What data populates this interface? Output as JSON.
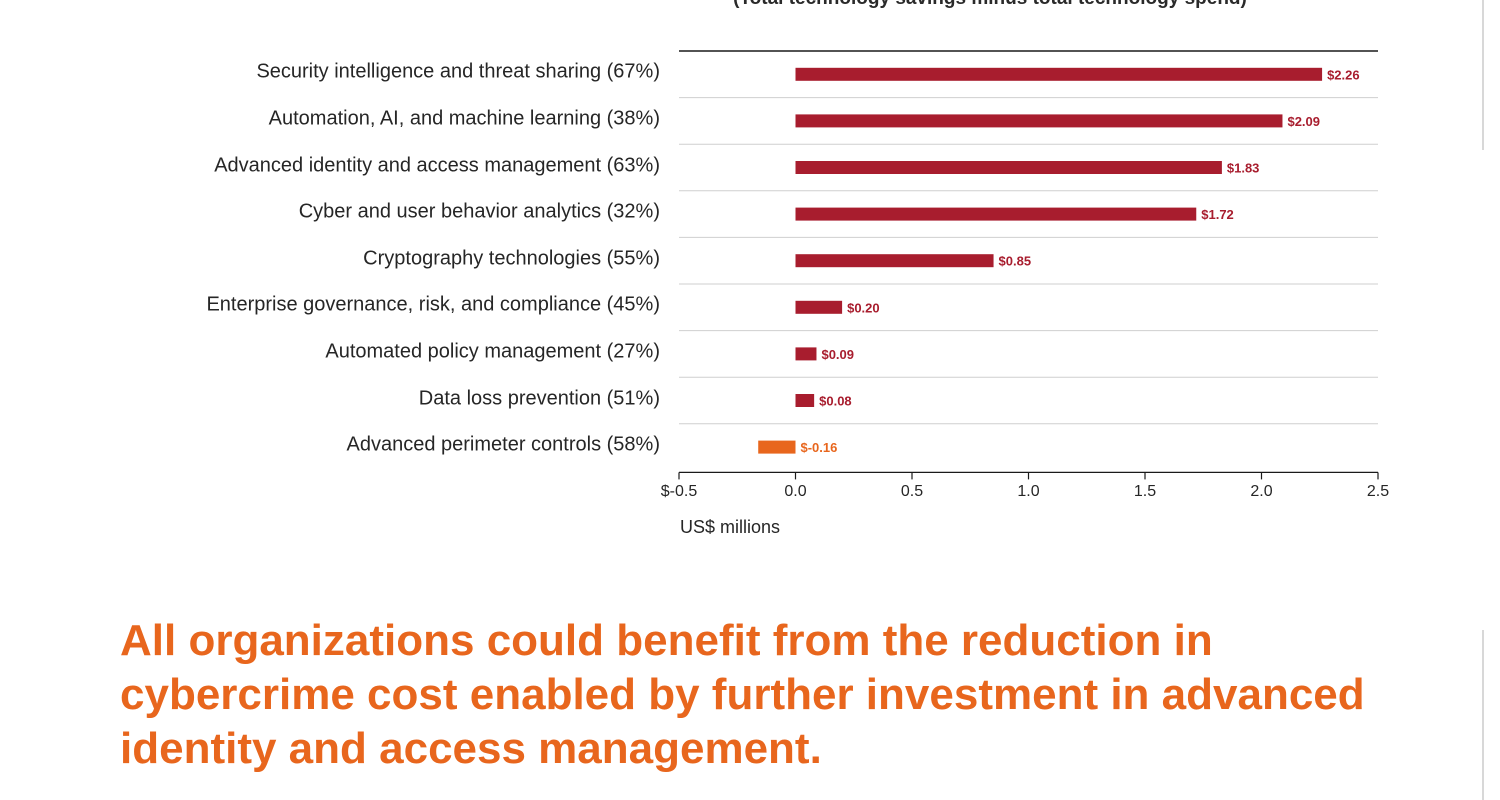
{
  "chart_data": {
    "type": "bar",
    "orientation": "horizontal",
    "subtitle": "(Total technology savings minus total technology spend)",
    "categories": [
      "Security intelligence and threat sharing (67%)",
      "Automation, AI, and machine learning (38%)",
      "Advanced identity and access management (63%)",
      "Cyber and user behavior analytics (32%)",
      "Cryptography technologies (55%)",
      "Enterprise governance, risk, and compliance (45%)",
      "Automated policy management (27%)",
      "Data loss prevention (51%)",
      "Advanced perimeter controls (58%)"
    ],
    "values": [
      2.26,
      2.09,
      1.83,
      1.72,
      0.85,
      0.2,
      0.09,
      0.08,
      -0.16
    ],
    "value_labels": [
      "$2.26",
      "$2.09",
      "$1.83",
      "$1.72",
      "$0.85",
      "$0.20",
      "$0.09",
      "$0.08",
      "$-0.16"
    ],
    "xlim": [
      -0.5,
      2.5
    ],
    "xticks": [
      -0.5,
      0.0,
      0.5,
      1.0,
      1.5,
      2.0,
      2.5
    ],
    "xtick_labels": [
      "$-0.5",
      "0.0",
      "0.5",
      "1.0",
      "1.5",
      "2.0",
      "2.5"
    ],
    "xlabel": "US$ millions",
    "colors": {
      "positive": "#a81d2e",
      "negative": "#e8661d"
    },
    "grid": "horizontal row separators"
  },
  "headline": "All organizations could benefit from the reduction in cybercrime cost enabled by further investment in advanced identity and access management."
}
